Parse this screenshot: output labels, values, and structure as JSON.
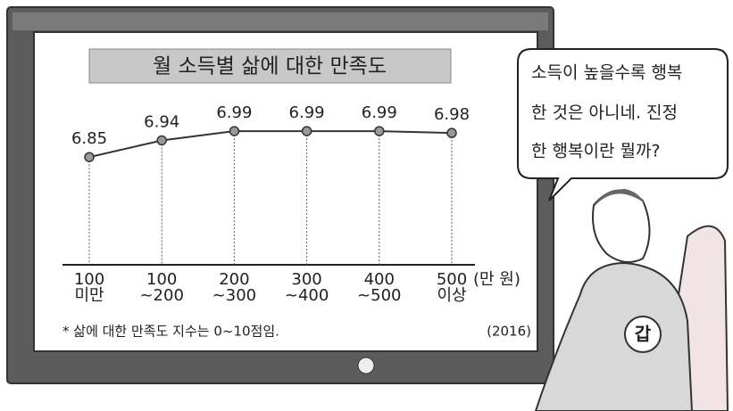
{
  "chart_data": {
    "type": "line",
    "title": "월 소득별 삶에 대한 만족도",
    "categories": [
      "100 미만",
      "100 ~200",
      "200 ~300",
      "300 ~400",
      "400 ~500",
      "500 이상"
    ],
    "values": [
      6.85,
      6.94,
      6.99,
      6.99,
      6.99,
      6.98
    ],
    "x_label": "(만 원)",
    "note": "* 삶에 대한 만족도 지수는 0~10점임.",
    "source": "(2016)",
    "color": "#333333",
    "ylim": [
      6.27,
      7.12
    ]
  },
  "speech_bubble": {
    "lines": [
      "소득이 높을수록 행복",
      "한 것은 아니네. 진정",
      "한 행복이란 뭘까?"
    ]
  },
  "character": {
    "label": "갑"
  }
}
